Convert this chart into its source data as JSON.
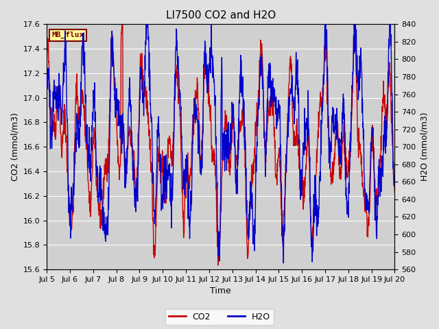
{
  "title": "LI7500 CO2 and H2O",
  "xlabel": "Time",
  "ylabel_left": "CO2 (mmol/m3)",
  "ylabel_right": "H2O (mmol/m3)",
  "ylim_left": [
    15.6,
    17.6
  ],
  "ylim_right": [
    560,
    840
  ],
  "yticks_left": [
    15.6,
    15.8,
    16.0,
    16.2,
    16.4,
    16.6,
    16.8,
    17.0,
    17.2,
    17.4,
    17.6
  ],
  "yticks_right": [
    560,
    580,
    600,
    620,
    640,
    660,
    680,
    700,
    720,
    740,
    760,
    780,
    800,
    820,
    840
  ],
  "xtick_labels": [
    "Jul 5",
    "Jul 6",
    "Jul 7",
    "Jul 8",
    "Jul 9",
    "Jul 10",
    "Jul 11",
    "Jul 12",
    "Jul 13",
    "Jul 14",
    "Jul 15",
    "Jul 16",
    "Jul 17",
    "Jul 18",
    "Jul 19",
    "Jul 20"
  ],
  "co2_color": "#cc0000",
  "h2o_color": "#0000cc",
  "bg_color": "#e0e0e0",
  "plot_bg_color": "#d0d0d0",
  "label_box_text": "MB_flux",
  "label_box_facecolor": "#ffff99",
  "label_box_edgecolor": "#800000",
  "legend_co2": "CO2",
  "legend_h2o": "H2O",
  "line_width": 1.0,
  "title_fontsize": 11,
  "axis_fontsize": 9,
  "tick_fontsize": 8
}
